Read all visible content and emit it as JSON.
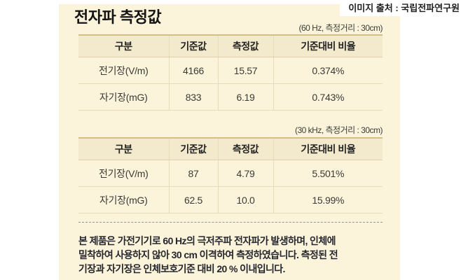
{
  "page": {
    "title": "전자파 측정값",
    "source_caption": "이미지 출처 : 국립전파연구원"
  },
  "colors": {
    "panel_bg": "#fbf4db",
    "table_header_bg": "#f3e9cc",
    "table_top_border": "#d3be85",
    "table_inner_border": "#e6dcbc",
    "text": "#232323"
  },
  "tables": [
    {
      "caption": "(60 Hz, 측정거리 : 30cm)",
      "headers": [
        "구분",
        "기준값",
        "측정값",
        "기준대비 비율"
      ],
      "rows": [
        [
          "전기장(V/m)",
          "4166",
          "15.57",
          "0.374%"
        ],
        [
          "자기장(mG)",
          "833",
          "6.19",
          "0.743%"
        ]
      ]
    },
    {
      "caption": "(30 kHz, 측정거리 : 30cm)",
      "headers": [
        "구분",
        "기준값",
        "측정값",
        "기준대비 비율"
      ],
      "rows": [
        [
          "전기장(V/m)",
          "87",
          "4.79",
          "5.501%"
        ],
        [
          "자기장(mG)",
          "62.5",
          "10.0",
          "15.99%"
        ]
      ]
    }
  ],
  "footnote": {
    "lines": [
      "본 제품은 가전기기로 60 Hz의 극저주파 전자파가 발생하며, 인체에",
      "밀착하여 사용하지 않아 30 cm 이격하여 측정하였습니다. 측정된 전",
      "기장과 자기장은 인체보호기준 대비 20 % 이내입니다."
    ]
  }
}
